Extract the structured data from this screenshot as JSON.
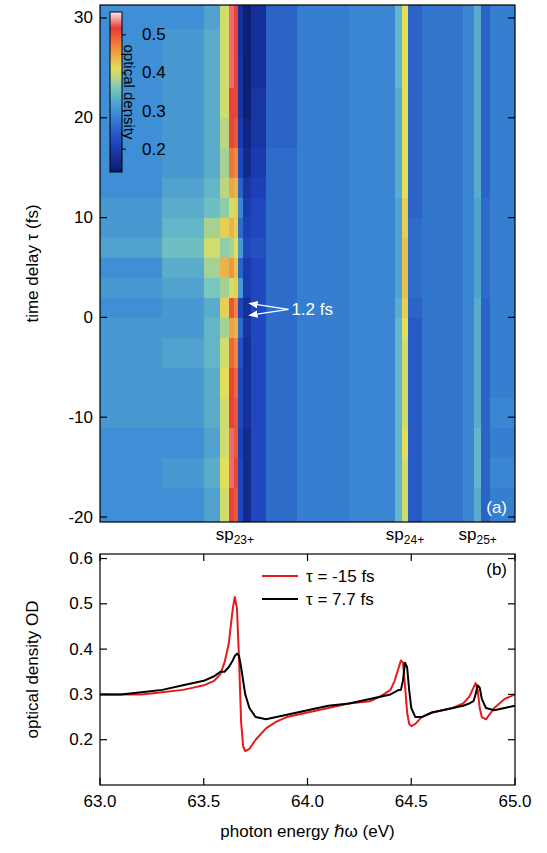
{
  "chart_data": [
    {
      "type": "heatmap",
      "panel_label": "(a)",
      "y_label": "time delay τ (fs)",
      "xlim": [
        63.0,
        65.0
      ],
      "ylim": [
        -20.5,
        31.3
      ],
      "yticks": [
        -20,
        -10,
        0,
        10,
        20,
        30
      ],
      "tick_labels": "y",
      "x_edges": [
        63.0,
        63.3,
        63.5,
        63.58,
        63.62,
        63.645,
        63.665,
        63.69,
        63.73,
        63.8,
        63.95,
        64.2,
        64.42,
        64.455,
        64.485,
        64.55,
        64.75,
        64.8,
        64.835,
        64.88,
        65.0
      ],
      "y_edges": [
        -20.5,
        -17,
        -14,
        -11,
        -8,
        -5,
        -2,
        0,
        2,
        4,
        6,
        8,
        10,
        12,
        14,
        17,
        20,
        23,
        26,
        29,
        31.3
      ],
      "cells": [
        [
          0.3,
          0.3,
          0.32,
          0.4,
          0.52,
          0.5,
          0.22,
          0.17,
          0.22,
          0.26,
          0.28,
          0.29,
          0.34,
          0.4,
          0.24,
          0.27,
          0.29,
          0.33,
          0.25,
          0.28
        ],
        [
          0.3,
          0.31,
          0.33,
          0.41,
          0.53,
          0.51,
          0.22,
          0.17,
          0.22,
          0.26,
          0.28,
          0.29,
          0.34,
          0.4,
          0.24,
          0.27,
          0.29,
          0.34,
          0.25,
          0.29
        ],
        [
          0.3,
          0.3,
          0.32,
          0.4,
          0.53,
          0.5,
          0.21,
          0.17,
          0.22,
          0.26,
          0.28,
          0.29,
          0.34,
          0.41,
          0.24,
          0.27,
          0.29,
          0.34,
          0.25,
          0.28
        ],
        [
          0.31,
          0.31,
          0.33,
          0.4,
          0.52,
          0.5,
          0.22,
          0.18,
          0.22,
          0.26,
          0.28,
          0.29,
          0.34,
          0.4,
          0.24,
          0.27,
          0.29,
          0.33,
          0.25,
          0.29
        ],
        [
          0.31,
          0.31,
          0.33,
          0.41,
          0.51,
          0.49,
          0.22,
          0.18,
          0.22,
          0.26,
          0.28,
          0.29,
          0.34,
          0.4,
          0.24,
          0.27,
          0.29,
          0.33,
          0.25,
          0.28
        ],
        [
          0.31,
          0.32,
          0.34,
          0.4,
          0.49,
          0.47,
          0.23,
          0.18,
          0.22,
          0.26,
          0.28,
          0.29,
          0.34,
          0.4,
          0.24,
          0.27,
          0.29,
          0.33,
          0.25,
          0.28
        ],
        [
          0.31,
          0.31,
          0.34,
          0.38,
          0.45,
          0.44,
          0.26,
          0.19,
          0.22,
          0.26,
          0.28,
          0.29,
          0.34,
          0.41,
          0.24,
          0.27,
          0.29,
          0.33,
          0.25,
          0.28
        ],
        [
          0.3,
          0.31,
          0.33,
          0.42,
          0.5,
          0.47,
          0.22,
          0.18,
          0.22,
          0.26,
          0.28,
          0.29,
          0.33,
          0.42,
          0.25,
          0.27,
          0.29,
          0.33,
          0.25,
          0.28
        ],
        [
          0.31,
          0.32,
          0.36,
          0.38,
          0.4,
          0.42,
          0.31,
          0.2,
          0.22,
          0.26,
          0.28,
          0.29,
          0.32,
          0.43,
          0.26,
          0.27,
          0.29,
          0.32,
          0.26,
          0.28
        ],
        [
          0.3,
          0.33,
          0.38,
          0.44,
          0.46,
          0.43,
          0.25,
          0.2,
          0.22,
          0.26,
          0.28,
          0.29,
          0.32,
          0.43,
          0.26,
          0.27,
          0.29,
          0.32,
          0.26,
          0.28
        ],
        [
          0.32,
          0.35,
          0.4,
          0.37,
          0.38,
          0.41,
          0.31,
          0.22,
          0.23,
          0.26,
          0.28,
          0.29,
          0.32,
          0.43,
          0.26,
          0.27,
          0.29,
          0.32,
          0.26,
          0.28
        ],
        [
          0.31,
          0.34,
          0.38,
          0.42,
          0.44,
          0.42,
          0.26,
          0.21,
          0.22,
          0.26,
          0.28,
          0.29,
          0.32,
          0.42,
          0.26,
          0.27,
          0.29,
          0.32,
          0.26,
          0.28
        ],
        [
          0.31,
          0.33,
          0.35,
          0.37,
          0.4,
          0.42,
          0.29,
          0.2,
          0.22,
          0.26,
          0.28,
          0.29,
          0.32,
          0.42,
          0.25,
          0.27,
          0.29,
          0.32,
          0.26,
          0.28
        ],
        [
          0.3,
          0.32,
          0.34,
          0.39,
          0.45,
          0.44,
          0.25,
          0.19,
          0.21,
          0.26,
          0.28,
          0.29,
          0.33,
          0.41,
          0.25,
          0.27,
          0.29,
          0.33,
          0.25,
          0.28
        ],
        [
          0.3,
          0.31,
          0.33,
          0.38,
          0.48,
          0.47,
          0.22,
          0.17,
          0.2,
          0.26,
          0.28,
          0.29,
          0.33,
          0.41,
          0.25,
          0.27,
          0.29,
          0.33,
          0.25,
          0.28
        ],
        [
          0.3,
          0.31,
          0.33,
          0.39,
          0.51,
          0.5,
          0.2,
          0.16,
          0.19,
          0.25,
          0.28,
          0.29,
          0.33,
          0.41,
          0.25,
          0.27,
          0.29,
          0.33,
          0.25,
          0.28
        ],
        [
          0.3,
          0.31,
          0.33,
          0.4,
          0.52,
          0.51,
          0.19,
          0.15,
          0.19,
          0.25,
          0.28,
          0.29,
          0.33,
          0.41,
          0.25,
          0.27,
          0.29,
          0.33,
          0.25,
          0.28
        ],
        [
          0.3,
          0.31,
          0.33,
          0.4,
          0.53,
          0.52,
          0.19,
          0.15,
          0.18,
          0.25,
          0.28,
          0.29,
          0.34,
          0.41,
          0.25,
          0.27,
          0.29,
          0.33,
          0.25,
          0.28
        ],
        [
          0.3,
          0.31,
          0.33,
          0.4,
          0.53,
          0.52,
          0.18,
          0.15,
          0.18,
          0.25,
          0.28,
          0.29,
          0.34,
          0.41,
          0.25,
          0.27,
          0.29,
          0.33,
          0.25,
          0.28
        ],
        [
          0.3,
          0.3,
          0.32,
          0.4,
          0.53,
          0.52,
          0.18,
          0.15,
          0.18,
          0.25,
          0.28,
          0.29,
          0.34,
          0.41,
          0.25,
          0.27,
          0.29,
          0.33,
          0.25,
          0.28
        ]
      ],
      "colorbar": {
        "label": "optical density",
        "range": [
          0.14,
          0.56
        ],
        "ticks": [
          0.2,
          0.3,
          0.4,
          0.5
        ]
      },
      "line_labels": [
        {
          "base": "sp",
          "sub": "23+",
          "x": 63.65
        },
        {
          "base": "sp",
          "sub": "24+",
          "x": 64.47
        },
        {
          "base": "sp",
          "sub": "25+",
          "x": 64.82
        }
      ],
      "annotations": [
        {
          "text": "1.2 fs",
          "x": 63.72,
          "y": [
            1.4,
            0.2
          ]
        }
      ]
    },
    {
      "type": "line",
      "panel_label": "(b)",
      "x_label": "photon energy ℏω (eV)",
      "y_label": "optical density OD",
      "xlim": [
        63.0,
        65.0
      ],
      "ylim": [
        0.1,
        0.61
      ],
      "xticks": [
        {
          "value": 63,
          "label": "63.0"
        },
        {
          "value": 63.5,
          "label": "63.5"
        },
        {
          "value": 64,
          "label": "64.0"
        },
        {
          "value": 64.5,
          "label": "64.5"
        },
        {
          "value": 65,
          "label": "65.0"
        }
      ],
      "yticks": [
        0.2,
        0.3,
        0.4,
        0.5,
        0.6
      ],
      "legend": "top",
      "x": [
        63.0,
        63.1,
        63.2,
        63.3,
        63.4,
        63.45,
        63.5,
        63.55,
        63.58,
        63.6,
        63.62,
        63.64,
        63.65,
        63.66,
        63.67,
        63.68,
        63.69,
        63.7,
        63.72,
        63.75,
        63.8,
        63.85,
        63.9,
        64.0,
        64.1,
        64.2,
        64.3,
        64.35,
        64.4,
        64.42,
        64.44,
        64.45,
        64.46,
        64.47,
        64.48,
        64.49,
        64.5,
        64.52,
        64.55,
        64.6,
        64.65,
        64.7,
        64.75,
        64.78,
        64.8,
        64.81,
        64.82,
        64.83,
        64.84,
        64.86,
        64.9,
        64.95,
        65.0
      ],
      "series": [
        {
          "name": "τ = -15 fs",
          "color": "#e41a1c",
          "values": [
            0.3,
            0.3,
            0.3,
            0.305,
            0.31,
            0.315,
            0.32,
            0.33,
            0.345,
            0.37,
            0.41,
            0.49,
            0.515,
            0.49,
            0.38,
            0.24,
            0.185,
            0.175,
            0.18,
            0.2,
            0.225,
            0.24,
            0.25,
            0.26,
            0.27,
            0.28,
            0.285,
            0.295,
            0.31,
            0.33,
            0.36,
            0.375,
            0.37,
            0.32,
            0.26,
            0.235,
            0.23,
            0.235,
            0.25,
            0.26,
            0.265,
            0.27,
            0.28,
            0.295,
            0.315,
            0.325,
            0.31,
            0.27,
            0.25,
            0.245,
            0.27,
            0.29,
            0.3
          ]
        },
        {
          "name": "τ = 7.7 fs",
          "color": "#000000",
          "values": [
            0.3,
            0.3,
            0.305,
            0.31,
            0.32,
            0.325,
            0.33,
            0.34,
            0.35,
            0.35,
            0.36,
            0.375,
            0.385,
            0.39,
            0.385,
            0.36,
            0.33,
            0.3,
            0.27,
            0.25,
            0.245,
            0.25,
            0.255,
            0.265,
            0.275,
            0.28,
            0.29,
            0.295,
            0.3,
            0.305,
            0.31,
            0.31,
            0.33,
            0.37,
            0.36,
            0.31,
            0.27,
            0.25,
            0.25,
            0.26,
            0.265,
            0.27,
            0.275,
            0.28,
            0.285,
            0.3,
            0.32,
            0.315,
            0.29,
            0.27,
            0.265,
            0.27,
            0.275
          ]
        }
      ]
    }
  ]
}
